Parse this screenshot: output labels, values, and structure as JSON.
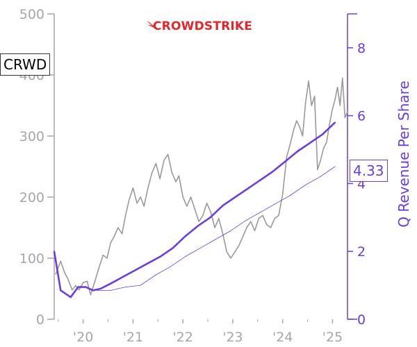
{
  "ticker": "CRWD",
  "brand": {
    "name": "CROWDSTRIKE",
    "color": "#e5252a",
    "icon": "falcon-icon"
  },
  "colors": {
    "price": "#999999",
    "revenue": "#6a3ddf",
    "revenue_trend": "#6a3ddf",
    "axis_left": "#a6a6a6",
    "axis_right": "#6a3ddf"
  },
  "last_value_label": "4.33",
  "chart_data": {
    "type": "line",
    "xlabel": "",
    "x_ticks": [
      "'20",
      "'21",
      "'22",
      "'23",
      "'24",
      "'25"
    ],
    "y_left": {
      "label": "",
      "ticks": [
        0,
        100,
        200,
        300,
        400,
        500
      ],
      "range": [
        0,
        500
      ]
    },
    "y_right": {
      "label": "Q Revenue Per Share",
      "ticks": [
        0,
        2,
        4,
        6,
        8
      ],
      "range": [
        0,
        9
      ]
    },
    "x_range": [
      2019.42,
      2025.3
    ],
    "series": [
      {
        "axis": "left",
        "x": [
          2019.45,
          2019.55,
          2019.62,
          2019.7,
          2019.78,
          2019.85,
          2019.92,
          2020.0,
          2020.08,
          2020.15,
          2020.22,
          2020.3,
          2020.4,
          2020.48,
          2020.55,
          2020.62,
          2020.7,
          2020.78,
          2020.85,
          2020.92,
          2021.0,
          2021.08,
          2021.15,
          2021.22,
          2021.3,
          2021.38,
          2021.46,
          2021.54,
          2021.62,
          2021.7,
          2021.78,
          2021.86,
          2021.92,
          2022.0,
          2022.08,
          2022.16,
          2022.24,
          2022.32,
          2022.4,
          2022.48,
          2022.56,
          2022.64,
          2022.72,
          2022.8,
          2022.88,
          2022.96,
          2023.04,
          2023.12,
          2023.2,
          2023.28,
          2023.36,
          2023.44,
          2023.52,
          2023.6,
          2023.68,
          2023.76,
          2023.84,
          2023.92,
          2024.0,
          2024.08,
          2024.16,
          2024.22,
          2024.28,
          2024.34,
          2024.4,
          2024.46,
          2024.52,
          2024.58,
          2024.64,
          2024.7,
          2024.76,
          2024.82,
          2024.88,
          2024.94,
          2025.0,
          2025.05,
          2025.1,
          2025.15,
          2025.2,
          2025.25,
          2025.3
        ],
        "values": [
          74,
          95,
          78,
          65,
          48,
          55,
          48,
          60,
          62,
          40,
          58,
          80,
          105,
          100,
          125,
          135,
          150,
          140,
          170,
          195,
          215,
          190,
          200,
          185,
          215,
          240,
          255,
          230,
          260,
          270,
          240,
          225,
          235,
          200,
          185,
          200,
          180,
          160,
          170,
          190,
          175,
          150,
          165,
          140,
          110,
          100,
          110,
          120,
          135,
          150,
          160,
          145,
          165,
          170,
          155,
          150,
          165,
          170,
          205,
          265,
          290,
          310,
          325,
          315,
          300,
          355,
          390,
          350,
          365,
          245,
          260,
          280,
          290,
          320,
          345,
          360,
          380,
          350,
          395,
          330,
          340
        ]
      },
      {
        "axis": "right",
        "name": "",
        "x": [
          2019.42,
          2019.55,
          2019.75,
          2019.9,
          2020.05,
          2020.2,
          2020.35,
          2020.55,
          2020.8,
          2021.05,
          2021.3,
          2021.55,
          2021.8,
          2022.05,
          2022.3,
          2022.55,
          2022.8,
          2023.05,
          2023.3,
          2023.55,
          2023.8,
          2024.05,
          2024.3,
          2024.55,
          2024.8,
          2025.05
        ],
        "values": [
          2.0,
          0.85,
          0.65,
          0.95,
          0.95,
          0.85,
          0.9,
          1.05,
          1.25,
          1.45,
          1.65,
          1.85,
          2.1,
          2.45,
          2.75,
          3.0,
          3.35,
          3.6,
          3.85,
          4.1,
          4.35,
          4.65,
          4.95,
          5.2,
          5.45,
          5.8
        ]
      },
      {
        "axis": "right",
        "name": "",
        "x": [
          2020.2,
          2020.55,
          2020.85,
          2021.15,
          2021.45,
          2021.75,
          2022.05,
          2022.35,
          2022.65,
          2022.95,
          2023.25,
          2023.55,
          2023.85,
          2024.15,
          2024.45,
          2024.75,
          2025.05
        ],
        "values": [
          0.85,
          0.85,
          0.95,
          1.0,
          1.3,
          1.55,
          1.85,
          2.1,
          2.35,
          2.6,
          2.9,
          3.15,
          3.4,
          3.65,
          3.95,
          4.2,
          4.5
        ]
      }
    ],
    "grid": false,
    "legend": "none"
  }
}
